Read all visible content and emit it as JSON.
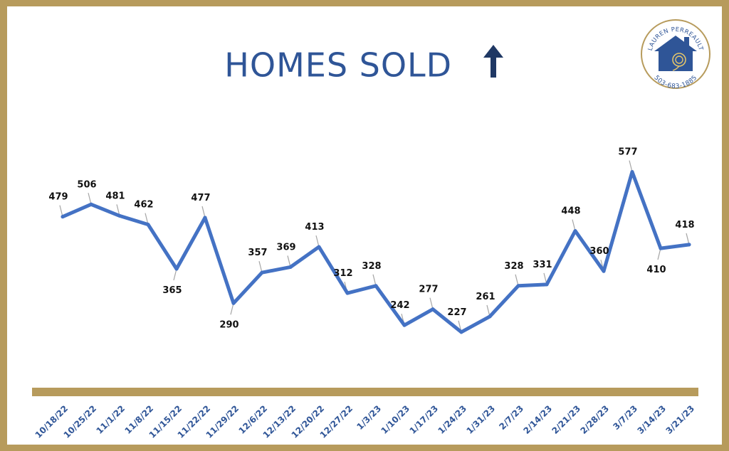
{
  "logo": {
    "name": "LAUREN PERREAULT",
    "phone": "503-683-1885",
    "icon": "house-rose-icon",
    "colors": {
      "ring": "#b79b5c",
      "house": "#2f5597",
      "rose": "#e3c46a"
    }
  },
  "colors": {
    "frame": "#b79b5c",
    "line": "#4472c4",
    "title": "#2f5597",
    "arrow": "#1f3864",
    "baseline": "#b79b5c",
    "tick_label": "#2f5597"
  },
  "chart_data": {
    "type": "line",
    "title": "HOMES SOLD",
    "title_icon": "up-arrow-icon",
    "categories": [
      "10/18/22",
      "10/25/22",
      "11/1/22",
      "11/8/22",
      "11/15/22",
      "11/22/22",
      "11/29/22",
      "12/6/22",
      "12/13/22",
      "12/20/22",
      "12/27/22",
      "1/3/23",
      "1/10/23",
      "1/17/23",
      "1/24/23",
      "1/31/23",
      "2/7/23",
      "2/14/23",
      "2/21/23",
      "2/28/23",
      "3/7/23",
      "3/14/23",
      "3/21/23"
    ],
    "values": [
      479,
      506,
      481,
      462,
      365,
      477,
      290,
      357,
      369,
      413,
      312,
      328,
      242,
      277,
      227,
      261,
      328,
      331,
      448,
      360,
      577,
      410,
      418
    ],
    "data_labels": [
      "479",
      "506",
      "481",
      "462",
      "365",
      "477",
      "290",
      "357",
      "369",
      "413",
      "312",
      "328",
      "242",
      "277",
      "227",
      "261",
      "328",
      "331",
      "448",
      "360",
      "577",
      "410",
      "418"
    ],
    "xlabel": "",
    "ylabel": "",
    "grid": false,
    "legend": "none"
  }
}
